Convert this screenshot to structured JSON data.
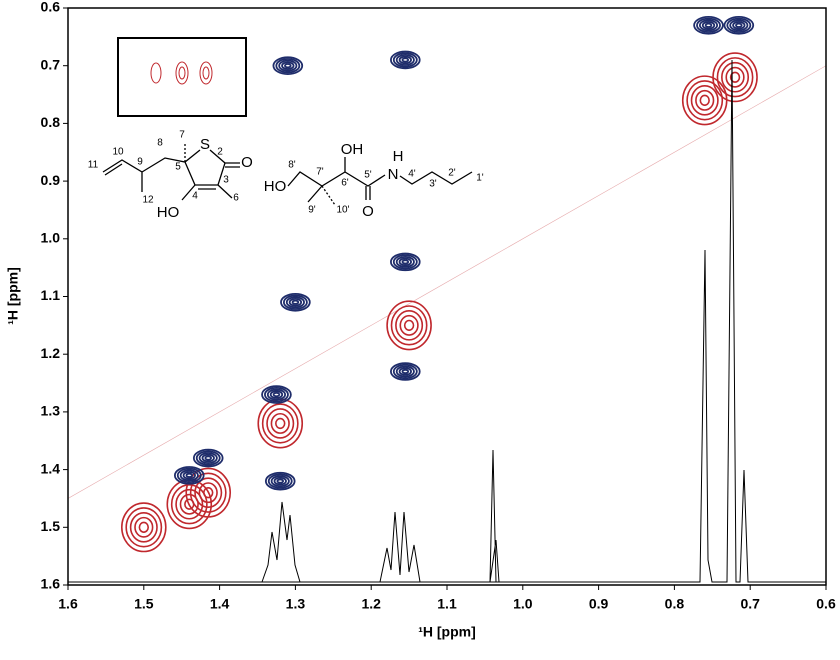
{
  "chart_data": {
    "type": "contour",
    "x_label": "¹H [ppm]",
    "y_label": "¹H [ppm]",
    "xlim": [
      1.6,
      0.6
    ],
    "ylim": [
      1.6,
      0.6
    ],
    "xticks": [
      1.6,
      1.5,
      1.4,
      1.3,
      1.2,
      1.1,
      {
        "value": 1,
        "label": "1.0"
      },
      0.9,
      0.8,
      0.7,
      0.6
    ],
    "yticks": [
      0.6,
      0.7,
      0.8,
      0.9,
      {
        "value": 1,
        "label": "1.0"
      },
      1.1,
      1.2,
      1.3,
      1.4,
      1.5,
      1.6
    ],
    "series": [
      {
        "name": "diagonal",
        "color": "#c0282d",
        "x": [
          1.5,
          1.44,
          1.415,
          1.32,
          1.15,
          0.76,
          0.72
        ],
        "values": [
          1.5,
          1.46,
          1.44,
          1.32,
          1.15,
          0.76,
          0.72
        ]
      },
      {
        "name": "cross",
        "color": "#1f2d6b",
        "x": [
          1.31,
          1.155,
          1.3,
          1.325,
          1.32,
          1.155,
          1.155,
          1.44,
          1.415,
          0.755,
          0.715
        ],
        "values": [
          0.7,
          0.69,
          1.11,
          1.27,
          1.42,
          1.04,
          1.23,
          1.41,
          1.38,
          0.63,
          0.63
        ]
      }
    ],
    "structure_labels": [
      "11",
      "10",
      "9",
      "12",
      "8",
      "5",
      "7",
      "S",
      "2",
      "O",
      "3",
      "4",
      "6",
      "HO",
      "HO",
      "8'",
      "7'",
      "9'",
      "10'",
      "6'",
      "OH",
      "5'",
      "O",
      "H",
      "N",
      "4'",
      "3'",
      "2'",
      "1'"
    ]
  }
}
